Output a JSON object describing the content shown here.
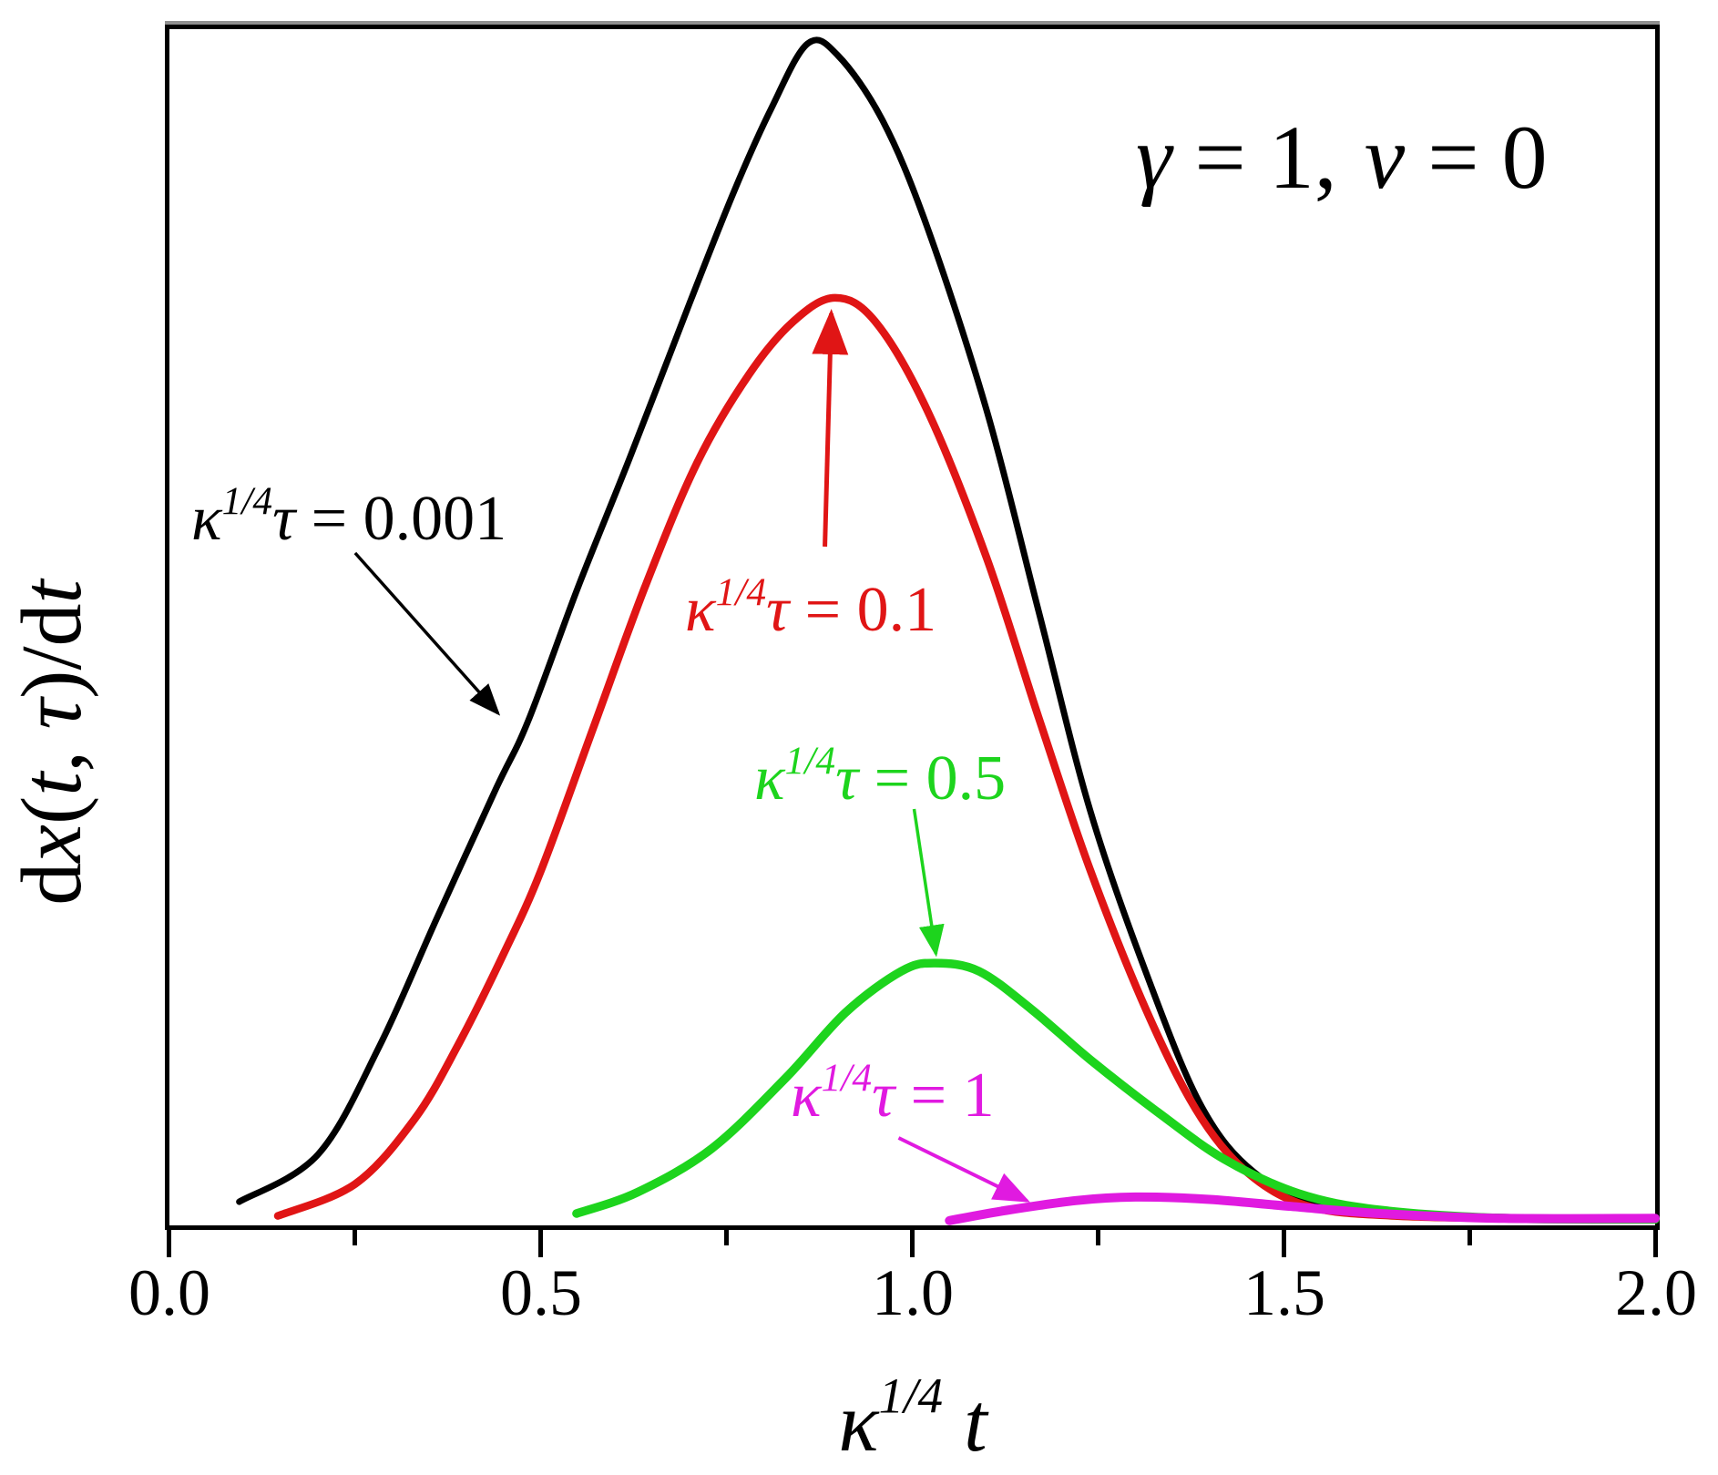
{
  "chart_data": {
    "type": "line",
    "title": "",
    "xlabel": "κ^(1/4) t",
    "ylabel": "dx(t, τ)/dt",
    "corner_annotation": "γ = 1, ν = 0",
    "xlim": [
      0,
      2
    ],
    "ylim": [
      0,
      1.015
    ],
    "x_ticks": [
      0.0,
      0.5,
      1.0,
      1.5,
      2.0
    ],
    "x_minor_ticks": [
      0.25,
      0.75,
      1.25,
      1.75
    ],
    "y_ticks": [],
    "grid": false,
    "legend_position": "inline labels with arrows",
    "series": [
      {
        "name": "κ^(1/4)τ = 0.001",
        "color": "#000000",
        "x": [
          0.094,
          0.2,
          0.283,
          0.36,
          0.44,
          0.483,
          0.55,
          0.62,
          0.7,
          0.76,
          0.81,
          0.859,
          0.9,
          0.96,
          1.02,
          1.1,
          1.17,
          1.24,
          1.32,
          1.39,
          1.46,
          1.55,
          1.65,
          1.8,
          2.0
        ],
        "y": [
          0.02,
          0.06,
          0.152,
          0.26,
          0.37,
          0.427,
          0.54,
          0.65,
          0.78,
          0.875,
          0.945,
          1.0,
          0.99,
          0.935,
          0.845,
          0.69,
          0.52,
          0.35,
          0.205,
          0.1,
          0.045,
          0.018,
          0.01,
          0.007,
          0.006
        ]
      },
      {
        "name": "κ^(1/4)τ = 0.1",
        "color": "#e01515",
        "x": [
          0.146,
          0.25,
          0.33,
          0.388,
          0.45,
          0.5,
          0.57,
          0.64,
          0.71,
          0.78,
          0.84,
          0.896,
          0.95,
          1.02,
          1.1,
          1.17,
          1.24,
          1.32,
          1.39,
          1.46,
          1.54,
          1.65,
          1.8,
          2.0
        ],
        "y": [
          0.008,
          0.035,
          0.09,
          0.152,
          0.23,
          0.3,
          0.42,
          0.54,
          0.645,
          0.72,
          0.765,
          0.785,
          0.765,
          0.69,
          0.565,
          0.43,
          0.3,
          0.175,
          0.09,
          0.04,
          0.015,
          0.008,
          0.006,
          0.006
        ]
      },
      {
        "name": "κ^(1/4)τ = 0.5",
        "color": "#1dd41d",
        "x": [
          0.548,
          0.63,
          0.73,
          0.83,
          0.91,
          0.985,
          1.03,
          1.09,
          1.16,
          1.24,
          1.33,
          1.42,
          1.52,
          1.63,
          1.8,
          2.0
        ],
        "y": [
          0.01,
          0.028,
          0.065,
          0.125,
          0.18,
          0.215,
          0.222,
          0.215,
          0.183,
          0.14,
          0.096,
          0.056,
          0.027,
          0.013,
          0.006,
          0.005
        ]
      },
      {
        "name": "κ^(1/4)τ = 1",
        "color": "#e01ae0",
        "x": [
          1.05,
          1.12,
          1.22,
          1.3,
          1.4,
          1.51,
          1.63,
          1.79,
          2.0
        ],
        "y": [
          0.004,
          0.012,
          0.021,
          0.024,
          0.022,
          0.016,
          0.01,
          0.006,
          0.006
        ]
      }
    ]
  },
  "labels": {
    "x_tick_labels": [
      "0.0",
      "0.5",
      "1.0",
      "1.5",
      "2.0"
    ],
    "x_axis": {
      "kappa": "κ",
      "exponent": "1/4",
      "variable": "t"
    },
    "y_axis": {
      "d1": "d",
      "x": "x",
      "open": "(",
      "t1": "t",
      "comma": ", ",
      "tau": "τ",
      "close": ")/",
      "d2": "d",
      "t2": "t"
    },
    "annotation": {
      "gamma": "γ",
      "gamma_value": " = 1,",
      "nu": "ν",
      "nu_value": " = 0"
    },
    "curve_labels": [
      {
        "kappa": "κ",
        "exponent": "1/4",
        "tau": "τ",
        "value": " = 0.001"
      },
      {
        "kappa": "κ",
        "exponent": "1/4",
        "tau": "τ",
        "value": " = 0.1"
      },
      {
        "kappa": "κ",
        "exponent": "1/4",
        "tau": "τ",
        "value": " = 0.5"
      },
      {
        "kappa": "κ",
        "exponent": "1/4",
        "tau": "τ",
        "value": " = 1"
      }
    ]
  }
}
